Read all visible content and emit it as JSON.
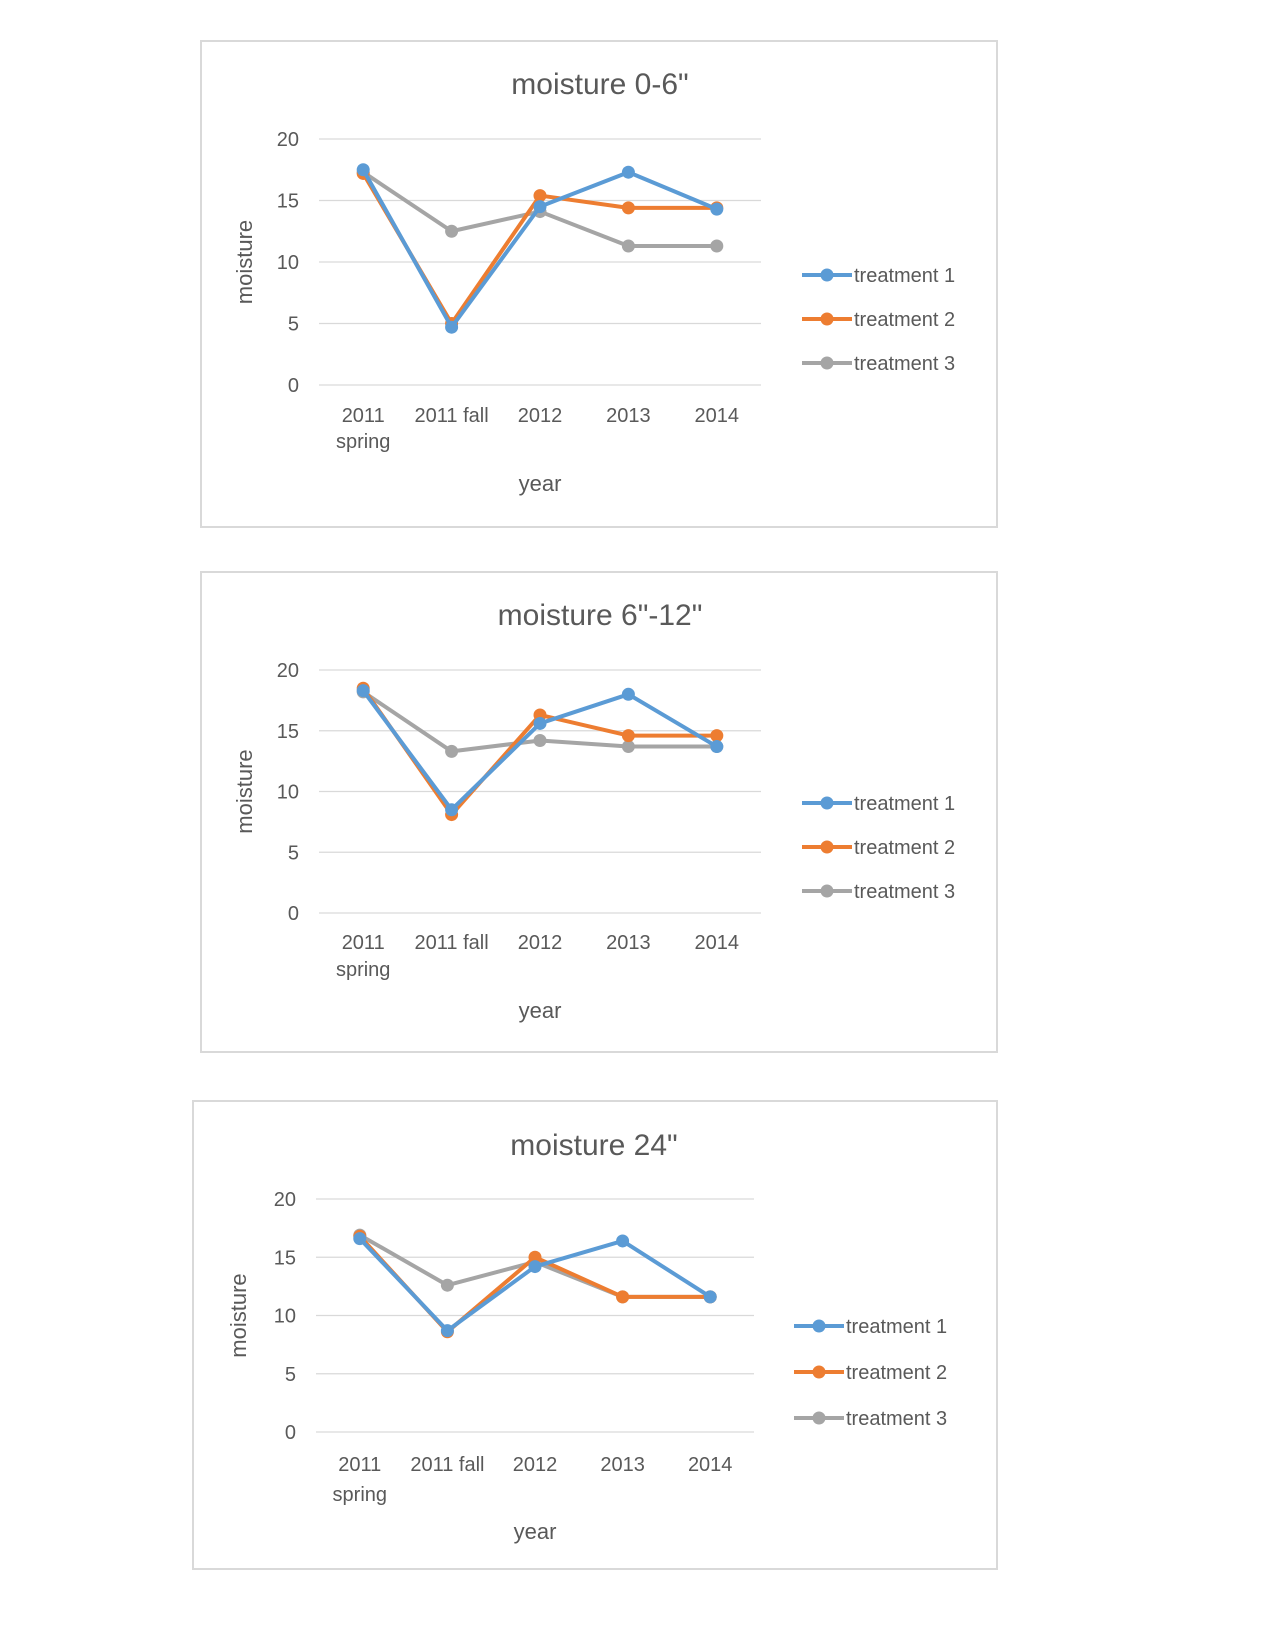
{
  "colors": {
    "treatment_1": "#5b9bd5",
    "treatment_2": "#ed7d31",
    "treatment_3": "#a5a5a5",
    "grid": "#d9d9d9",
    "text": "#595959"
  },
  "chart_data": [
    {
      "type": "line",
      "title": "moisture 0-6\"",
      "xlabel": "year",
      "ylabel": "moisture",
      "ylim": [
        0,
        20
      ],
      "yticks": [
        "0",
        "5",
        "10",
        "15",
        "20"
      ],
      "categories": [
        [
          "2011",
          "spring"
        ],
        [
          "2011 fall"
        ],
        [
          "2012"
        ],
        [
          "2013"
        ],
        [
          "2014"
        ]
      ],
      "legend_position": "right",
      "grid": true,
      "series": [
        {
          "name": "treatment 1",
          "color": "#5b9bd5",
          "values": [
            17.5,
            4.7,
            14.5,
            17.3,
            14.3
          ]
        },
        {
          "name": "treatment 2",
          "color": "#ed7d31",
          "values": [
            17.2,
            5.0,
            15.4,
            14.4,
            14.4
          ]
        },
        {
          "name": "treatment 3",
          "color": "#a5a5a5",
          "values": [
            17.3,
            12.5,
            14.1,
            11.3,
            11.3
          ]
        }
      ]
    },
    {
      "type": "line",
      "title": "moisture 6\"-12\"",
      "xlabel": "year",
      "ylabel": "moisture",
      "ylim": [
        0,
        20
      ],
      "yticks": [
        "0",
        "5",
        "10",
        "15",
        "20"
      ],
      "categories": [
        [
          "2011",
          "spring"
        ],
        [
          "2011 fall"
        ],
        [
          "2012"
        ],
        [
          "2013"
        ],
        [
          "2014"
        ]
      ],
      "legend_position": "right",
      "grid": true,
      "series": [
        {
          "name": "treatment 1",
          "color": "#5b9bd5",
          "values": [
            18.3,
            8.5,
            15.6,
            18.0,
            13.7
          ]
        },
        {
          "name": "treatment 2",
          "color": "#ed7d31",
          "values": [
            18.5,
            8.1,
            16.3,
            14.6,
            14.6
          ]
        },
        {
          "name": "treatment 3",
          "color": "#a5a5a5",
          "values": [
            18.2,
            13.3,
            14.2,
            13.7,
            13.7
          ]
        }
      ]
    },
    {
      "type": "line",
      "title": "moisture 24\"",
      "xlabel": "year",
      "ylabel": "moisture",
      "ylim": [
        0,
        20
      ],
      "yticks": [
        "0",
        "5",
        "10",
        "15",
        "20"
      ],
      "categories": [
        [
          "2011",
          "spring"
        ],
        [
          "2011 fall"
        ],
        [
          "2012"
        ],
        [
          "2013"
        ],
        [
          "2014"
        ]
      ],
      "legend_position": "right",
      "grid": true,
      "series": [
        {
          "name": "treatment 1",
          "color": "#5b9bd5",
          "values": [
            16.6,
            8.7,
            14.2,
            16.4,
            11.6
          ]
        },
        {
          "name": "treatment 2",
          "color": "#ed7d31",
          "values": [
            16.8,
            8.6,
            15.0,
            11.6,
            11.6
          ]
        },
        {
          "name": "treatment 3",
          "color": "#a5a5a5",
          "values": [
            16.9,
            12.6,
            14.6,
            11.6,
            11.6
          ]
        }
      ]
    }
  ]
}
